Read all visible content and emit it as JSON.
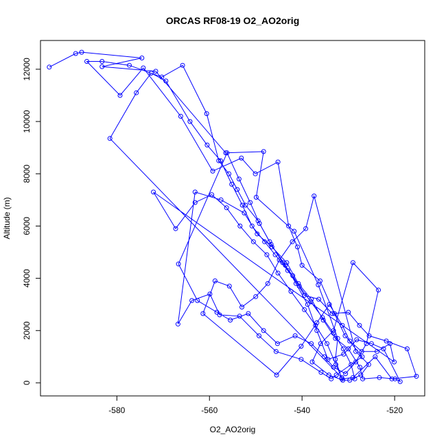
{
  "chart_data": {
    "type": "line",
    "title": "ORCAS RF08-19 O2_AO2orig",
    "xlabel": "O2_AO2orig",
    "ylabel": "Altitude (m)",
    "xlim": [
      -596.5,
      -513.5
    ],
    "ylim": [
      -500,
      13100
    ],
    "x_ticks": [
      -580,
      -560,
      -540,
      -520
    ],
    "y_ticks": [
      0,
      2000,
      4000,
      6000,
      8000,
      10000,
      12000
    ],
    "x_tick_labels": [
      "-580",
      "-560",
      "-540",
      "-520"
    ],
    "y_tick_labels": [
      "0",
      "2000",
      "4000",
      "6000",
      "8000",
      "10000",
      "12000"
    ],
    "grid": false,
    "legend": "none",
    "marker": "open-circle",
    "color": "#0000ff",
    "series": [
      {
        "values_note": "",
        "points": [
          [
            -594.6,
            12080
          ],
          [
            -588.9,
            12600
          ],
          [
            -587.6,
            12650
          ],
          [
            -574.6,
            12430
          ],
          [
            -583.2,
            12100
          ],
          [
            -571.6,
            11920
          ],
          [
            -556.5,
            8800
          ],
          [
            -548.3,
            8850
          ],
          [
            -549.9,
            7100
          ],
          [
            -541.7,
            5800
          ],
          [
            -536.5,
            3750
          ],
          [
            -532.3,
            1700
          ],
          [
            -532.8,
            900
          ],
          [
            -531.4,
            150
          ],
          [
            -529.0,
            200
          ],
          [
            -524.2,
            1000
          ],
          [
            -520.6,
            150
          ],
          [
            -515.3,
            250
          ],
          [
            -517.3,
            1300
          ],
          [
            -521.8,
            1600
          ],
          [
            -525.5,
            1800
          ],
          [
            -527.6,
            2200
          ],
          [
            -530.0,
            2700
          ],
          [
            -533.5,
            2650
          ],
          [
            -536.4,
            3200
          ],
          [
            -539.5,
            3350
          ],
          [
            -542.0,
            4100
          ],
          [
            -544.2,
            4600
          ],
          [
            -547.0,
            5400
          ],
          [
            -549.5,
            6200
          ],
          [
            -552.2,
            6800
          ],
          [
            -554.0,
            7400
          ],
          [
            -555.8,
            8000
          ],
          [
            -558.0,
            8500
          ],
          [
            -560.6,
            10300
          ],
          [
            -565.8,
            12150
          ],
          [
            -570.3,
            11700
          ],
          [
            -577.3,
            12150
          ],
          [
            -583.2,
            12300
          ],
          [
            -586.5,
            12300
          ],
          [
            -579.3,
            11000
          ],
          [
            -574.3,
            12050
          ],
          [
            -566.2,
            10200
          ],
          [
            -559.3,
            8100
          ],
          [
            -553.1,
            8600
          ],
          [
            -550.1,
            8000
          ],
          [
            -545.2,
            8450
          ],
          [
            -542.9,
            6000
          ],
          [
            -541.0,
            5200
          ],
          [
            -540.0,
            4500
          ],
          [
            -536.1,
            3900
          ],
          [
            -533.0,
            2650
          ],
          [
            -530.7,
            1800
          ],
          [
            -527.0,
            1000
          ],
          [
            -532.6,
            300
          ],
          [
            -533.7,
            150
          ],
          [
            -535.9,
            400
          ],
          [
            -540.2,
            900
          ],
          [
            -545.6,
            1200
          ],
          [
            -549.3,
            1800
          ],
          [
            -553.5,
            2550
          ],
          [
            -557.8,
            2600
          ],
          [
            -559.9,
            3400
          ],
          [
            -563.8,
            3150
          ],
          [
            -566.8,
            2250
          ],
          [
            -563.1,
            7300
          ],
          [
            -557.5,
            7000
          ],
          [
            -552.5,
            6500
          ],
          [
            -549.7,
            5700
          ],
          [
            -546.5,
            5200
          ],
          [
            -543.3,
            4600
          ],
          [
            -540.8,
            3800
          ],
          [
            -538.0,
            3200
          ],
          [
            -535.4,
            2400
          ],
          [
            -532.8,
            1700
          ],
          [
            -530.0,
            1300
          ],
          [
            -527.5,
            600
          ],
          [
            -526.9,
            150
          ],
          [
            -523.3,
            200
          ],
          [
            -519.9,
            150
          ],
          [
            -518.8,
            50
          ],
          [
            -522.4,
            1300
          ],
          [
            -525.0,
            1500
          ],
          [
            -528.2,
            1650
          ],
          [
            -531.0,
            1100
          ],
          [
            -534.4,
            900
          ],
          [
            -536.8,
            2000
          ],
          [
            -538.8,
            3000
          ],
          [
            -541.3,
            3800
          ],
          [
            -543.6,
            4500
          ],
          [
            -546.7,
            5300
          ],
          [
            -549.2,
            6100
          ],
          [
            -551.2,
            6900
          ],
          [
            -553.6,
            7800
          ],
          [
            -556.2,
            8800
          ],
          [
            -566.7,
            4550
          ],
          [
            -562.6,
            3150
          ],
          [
            -558.4,
            2700
          ],
          [
            -555.5,
            2400
          ],
          [
            -551.6,
            2650
          ],
          [
            -548.3,
            2000
          ],
          [
            -545.3,
            1500
          ],
          [
            -541.5,
            1800
          ],
          [
            -538.0,
            1500
          ],
          [
            -535.2,
            1000
          ],
          [
            -533.2,
            600
          ],
          [
            -530.6,
            350
          ],
          [
            -528.4,
            800
          ],
          [
            -526.1,
            1500
          ],
          [
            -523.5,
            3550
          ],
          [
            -529.0,
            4600
          ],
          [
            -533.2,
            2000
          ],
          [
            -536.0,
            1500
          ],
          [
            -537.8,
            800
          ],
          [
            -534.2,
            300
          ],
          [
            -531.2,
            100
          ],
          [
            -529.7,
            100
          ],
          [
            -527.3,
            300
          ],
          [
            -525.6,
            700
          ],
          [
            -528.4,
            1200
          ],
          [
            -537.4,
            7150
          ],
          [
            -539.2,
            5900
          ],
          [
            -542.1,
            5400
          ],
          [
            -544.9,
            4700
          ],
          [
            -547.4,
            3800
          ],
          [
            -550.0,
            3300
          ],
          [
            -553.0,
            2900
          ],
          [
            -555.7,
            3700
          ],
          [
            -558.8,
            3900
          ],
          [
            -561.4,
            2650
          ],
          [
            -545.5,
            300
          ],
          [
            -540.2,
            1400
          ],
          [
            -536.8,
            2300
          ],
          [
            -534.1,
            3000
          ],
          [
            -531.3,
            2200
          ],
          [
            -529.7,
            1600
          ],
          [
            -527.1,
            1200
          ],
          [
            -523.8,
            1200
          ],
          [
            -521.0,
            1500
          ],
          [
            -520.1,
            800
          ],
          [
            -572.1,
            7300
          ],
          [
            -567.3,
            5900
          ],
          [
            -563.1,
            6900
          ],
          [
            -559.5,
            7200
          ],
          [
            -556.3,
            6700
          ],
          [
            -553.4,
            6000
          ],
          [
            -550.5,
            5400
          ],
          [
            -547.6,
            4900
          ],
          [
            -545.2,
            4200
          ],
          [
            -542.4,
            3500
          ],
          [
            -539.5,
            2800
          ],
          [
            -537.1,
            2200
          ],
          [
            -534.6,
            1500
          ],
          [
            -532.7,
            700
          ],
          [
            -531.4,
            200
          ],
          [
            -581.5,
            9350
          ],
          [
            -575.8,
            11100
          ],
          [
            -572.6,
            11850
          ],
          [
            -569.4,
            11550
          ],
          [
            -564.2,
            10000
          ],
          [
            -560.5,
            9100
          ],
          [
            -557.6,
            8500
          ],
          [
            -555.2,
            7600
          ],
          [
            -552.9,
            6800
          ],
          [
            -550.8,
            6000
          ],
          [
            -548.1,
            5400
          ],
          [
            -545.8,
            4900
          ],
          [
            -543.1,
            4300
          ],
          [
            -540.6,
            3700
          ],
          [
            -538.1,
            3100
          ],
          [
            -535.6,
            2500
          ],
          [
            -533.2,
            1900
          ],
          [
            -531.1,
            1300
          ],
          [
            -529.4,
            700
          ],
          [
            -528.6,
            150
          ]
        ]
      }
    ]
  }
}
